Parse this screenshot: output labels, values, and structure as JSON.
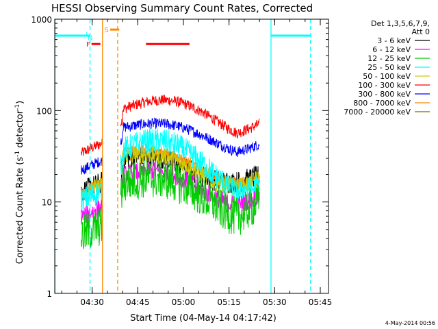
{
  "chart_data": {
    "type": "line",
    "title": "HESSI Observing Summary Count Rates, Corrected",
    "xlabel": "Start Time (04-May-14 04:17:42)",
    "ylabel_main": "Corrected Count Rate (s",
    "ylabel_sup1": "-1",
    "ylabel_mid": " detector",
    "ylabel_sup2": "-1",
    "ylabel_end": ")",
    "yscale": "log",
    "ylim": [
      1,
      1000
    ],
    "xlim_minutes": [
      0,
      90
    ],
    "x_tick_labels": [
      "04:30",
      "04:45",
      "05:00",
      "05:15",
      "05:30",
      "05:45"
    ],
    "y_tick_labels": [
      "1",
      "10",
      "100",
      "1000"
    ],
    "legend": {
      "title1": "Det 1,3,5,6,7,9,",
      "title2": "Att 0",
      "placement": "top-right",
      "entries": [
        {
          "label": "3 - 6 keV",
          "color": "#000000"
        },
        {
          "label": "6 - 12 keV",
          "color": "#ff00ff"
        },
        {
          "label": "12 - 25 keV",
          "color": "#00cc00"
        },
        {
          "label": "25 - 50 keV",
          "color": "#00ffff"
        },
        {
          "label": "50 - 100 keV",
          "color": "#cccc00"
        },
        {
          "label": "100 - 300 keV",
          "color": "#ff0000"
        },
        {
          "label": "300 - 800 keV",
          "color": "#0000ff"
        },
        {
          "label": "800 - 7000 keV",
          "color": "#ff8800"
        },
        {
          "label": "7000 - 20000 keV",
          "color": "#886600"
        }
      ]
    },
    "series": [
      {
        "color": "#ff0000",
        "base": 35,
        "peak": 125,
        "peak_x": 37,
        "width": 13,
        "noise": 0.06,
        "start": 40,
        "end": 108
      },
      {
        "color": "#0000ff",
        "base": 23,
        "peak": 68,
        "peak_x": 36,
        "width": 14,
        "noise": 0.06,
        "start": 26,
        "end": 58
      },
      {
        "color": "#000000",
        "base": 15,
        "peak": 27,
        "peak_x": 34,
        "width": 10,
        "noise": 0.12,
        "start": 15,
        "end": 18
      },
      {
        "color": "#ff8800",
        "base": 13,
        "peak": 33,
        "peak_x": 33,
        "width": 13,
        "noise": 0.06,
        "start": 15,
        "end": 16
      },
      {
        "color": "#cccc00",
        "base": 12,
        "peak": 30,
        "peak_x": 33,
        "width": 12,
        "noise": 0.1,
        "start": 14,
        "end": 23
      },
      {
        "color": "#00ffff",
        "base": 9,
        "peak": 45,
        "peak_x": 34,
        "width": 12,
        "noise": 0.14,
        "start": 12,
        "end": 19
      },
      {
        "color": "#ff00ff",
        "base": 7.5,
        "peak": 20,
        "peak_x": 34,
        "width": 12,
        "noise": 0.1,
        "start": 8,
        "end": 15
      },
      {
        "color": "#00cc00",
        "base": 4.8,
        "peak": 17,
        "peak_x": 34,
        "width": 13,
        "noise": 0.22,
        "start": 5,
        "end": 17
      }
    ],
    "data_gaps_minutes": [
      [
        18.3,
        23.5
      ],
      [
        80,
        90
      ]
    ],
    "data_segments_minutes": [
      [
        8.7,
        15.7
      ],
      [
        21.7,
        67.4
      ]
    ],
    "vertical_markers": [
      {
        "x": 0.1,
        "color": "#00ffff",
        "style": "solid"
      },
      {
        "x": 11.6,
        "color": "#00ffff",
        "style": "dashed"
      },
      {
        "x": 15.7,
        "color": "#ff8800",
        "style": "solid"
      },
      {
        "x": 20.7,
        "color": "#ff8800",
        "style": "dashed"
      },
      {
        "x": 71.1,
        "color": "#00ffff",
        "style": "solid"
      },
      {
        "x": 84.1,
        "color": "#00ffff",
        "style": "dashed"
      }
    ],
    "flag_bars": [
      {
        "label": "",
        "color": "#00ffff",
        "x0": 0.1,
        "x1": 11.6,
        "y": 660
      },
      {
        "label": "",
        "color": "#00ffff",
        "x0": 71.1,
        "x1": 84.1,
        "y": 660
      },
      {
        "label": "I",
        "color": "#00ffff",
        "x0": 11.3,
        "x1": 11.3,
        "y": 690
      },
      {
        "label": "N",
        "color": "#00ffff",
        "x0": 12.9,
        "x1": 12.9,
        "y": 635
      },
      {
        "label": "S",
        "color": "#ff8800",
        "x0": 18.2,
        "x1": 21.2,
        "y": 770
      },
      {
        "label": "F",
        "color": "#ff0000",
        "x0": 12.1,
        "x1": 15.0,
        "y": 535
      },
      {
        "label": "",
        "color": "#ff0000",
        "x0": 30.0,
        "x1": 44.3,
        "y": 535
      }
    ],
    "footer": "4-May-2014 00:56"
  }
}
